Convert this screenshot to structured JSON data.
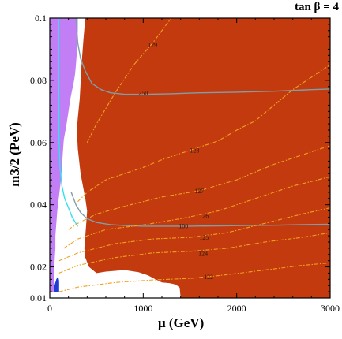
{
  "chart_data": {
    "type": "contour",
    "title": "tan β = 4",
    "xlabel": "μ  (GeV)",
    "ylabel": "m3/2 (PeV)",
    "xlim": [
      0,
      3000
    ],
    "ylim": [
      0.01,
      0.1
    ],
    "x_ticks": [
      "0",
      "1000",
      "2000",
      "3000"
    ],
    "y_ticks": [
      "0.01",
      "0.02",
      "0.04",
      "0.06",
      "0.08",
      "0.1"
    ],
    "x_tick_values": [
      0,
      1000,
      2000,
      3000
    ],
    "y_tick_values": [
      0.01,
      0.02,
      0.04,
      0.06,
      0.08,
      0.1
    ],
    "colors": {
      "excluded_region": "#c23a0e",
      "purple_region": "#c27ef5",
      "blue_region": "#1f3bd6",
      "higgs_contours": "#f0a020",
      "grey_contours": "#7f9fa8",
      "cyan_contour": "#33e0f0"
    },
    "regions": [
      {
        "name": "red",
        "color": "#c23a0e",
        "boundary": [
          [
            380,
            0.1
          ],
          [
            360,
            0.093
          ],
          [
            340,
            0.085
          ],
          [
            330,
            0.079
          ],
          [
            320,
            0.074
          ],
          [
            300,
            0.068
          ],
          [
            290,
            0.064
          ],
          [
            300,
            0.058
          ],
          [
            330,
            0.05
          ],
          [
            380,
            0.042
          ],
          [
            400,
            0.038
          ],
          [
            390,
            0.034
          ],
          [
            380,
            0.03
          ],
          [
            370,
            0.026
          ],
          [
            380,
            0.023
          ],
          [
            420,
            0.02
          ],
          [
            500,
            0.018
          ],
          [
            600,
            0.0185
          ],
          [
            800,
            0.019
          ],
          [
            950,
            0.0183
          ],
          [
            1050,
            0.0173
          ],
          [
            1130,
            0.016
          ],
          [
            1200,
            0.015
          ],
          [
            1280,
            0.0148
          ],
          [
            1350,
            0.0143
          ],
          [
            1390,
            0.0133
          ],
          [
            1400,
            0.01
          ],
          [
            3000,
            0.01
          ],
          [
            3000,
            0.1
          ]
        ]
      },
      {
        "name": "purple",
        "color": "#c27ef5",
        "boundary": [
          [
            0,
            0.1
          ],
          [
            300,
            0.1
          ],
          [
            300,
            0.096
          ],
          [
            290,
            0.093
          ],
          [
            290,
            0.089
          ],
          [
            280,
            0.085
          ],
          [
            270,
            0.082
          ],
          [
            260,
            0.08
          ],
          [
            240,
            0.077
          ],
          [
            220,
            0.074
          ],
          [
            200,
            0.07
          ],
          [
            180,
            0.066
          ],
          [
            150,
            0.061
          ],
          [
            140,
            0.057
          ],
          [
            130,
            0.052
          ],
          [
            120,
            0.048
          ],
          [
            100,
            0.043
          ],
          [
            80,
            0.038
          ],
          [
            70,
            0.034
          ],
          [
            60,
            0.03
          ],
          [
            60,
            0.026
          ],
          [
            50,
            0.021
          ],
          [
            50,
            0.016
          ],
          [
            40,
            0.012
          ],
          [
            0,
            0.012
          ]
        ]
      },
      {
        "name": "blue",
        "color": "#1f3bd6",
        "boundary": [
          [
            40,
            0.0118
          ],
          [
            100,
            0.0118
          ],
          [
            100,
            0.0155
          ],
          [
            90,
            0.017
          ],
          [
            70,
            0.016
          ],
          [
            50,
            0.014
          ]
        ]
      }
    ],
    "contours": [
      {
        "label": "250",
        "color": "#7f9fa8",
        "style": "solid",
        "label_at": [
          1000,
          0.076
        ],
        "points": [
          [
            280,
            0.1
          ],
          [
            300,
            0.092
          ],
          [
            330,
            0.087
          ],
          [
            380,
            0.083
          ],
          [
            450,
            0.079
          ],
          [
            550,
            0.077
          ],
          [
            650,
            0.076
          ],
          [
            800,
            0.0755
          ],
          [
            1000,
            0.0755
          ],
          [
            1300,
            0.0757
          ],
          [
            1600,
            0.076
          ],
          [
            2000,
            0.0762
          ],
          [
            2400,
            0.0765
          ],
          [
            2800,
            0.077
          ],
          [
            3000,
            0.0772
          ]
        ]
      },
      {
        "label": "100",
        "color": "#7f9fa8",
        "style": "solid",
        "label_at": [
          1430,
          0.0332
        ],
        "points": [
          [
            230,
            0.044
          ],
          [
            280,
            0.04
          ],
          [
            330,
            0.0375
          ],
          [
            400,
            0.0355
          ],
          [
            500,
            0.0343
          ],
          [
            650,
            0.0336
          ],
          [
            800,
            0.0333
          ],
          [
            1000,
            0.0331
          ],
          [
            1200,
            0.0331
          ],
          [
            1500,
            0.0331
          ],
          [
            1800,
            0.0332
          ],
          [
            2100,
            0.0333
          ],
          [
            2400,
            0.0334
          ],
          [
            2700,
            0.0336
          ],
          [
            3000,
            0.0337
          ]
        ]
      },
      {
        "label": "",
        "color": "#33e0f0",
        "style": "solid",
        "label_at": null,
        "points": [
          [
            95,
            0.1
          ],
          [
            95,
            0.08
          ],
          [
            100,
            0.06
          ],
          [
            110,
            0.052
          ],
          [
            130,
            0.046
          ],
          [
            160,
            0.042
          ],
          [
            200,
            0.039
          ],
          [
            240,
            0.036
          ],
          [
            280,
            0.034
          ],
          [
            300,
            0.033
          ]
        ]
      },
      {
        "label": "129",
        "color": "#f0a020",
        "style": "dashed",
        "label_at": [
          1100,
          0.0915
        ],
        "points": [
          [
            400,
            0.06
          ],
          [
            500,
            0.066
          ],
          [
            700,
            0.076
          ],
          [
            900,
            0.085
          ],
          [
            1100,
            0.092
          ],
          [
            1300,
            0.1
          ]
        ]
      },
      {
        "label": "128",
        "color": "#f0a020",
        "style": "dashed",
        "label_at": [
          1550,
          0.0575
        ],
        "points": [
          [
            300,
            0.041
          ],
          [
            400,
            0.044
          ],
          [
            600,
            0.048
          ],
          [
            800,
            0.05
          ],
          [
            1000,
            0.052
          ],
          [
            1200,
            0.0545
          ],
          [
            1400,
            0.0565
          ],
          [
            1600,
            0.0585
          ],
          [
            1800,
            0.0605
          ],
          [
            2000,
            0.064
          ],
          [
            2200,
            0.067
          ],
          [
            2400,
            0.072
          ],
          [
            2600,
            0.077
          ],
          [
            2800,
            0.081
          ],
          [
            3000,
            0.085
          ]
        ]
      },
      {
        "label": "127",
        "color": "#f0a020",
        "style": "dashed",
        "label_at": [
          1600,
          0.0445
        ],
        "points": [
          [
            200,
            0.032
          ],
          [
            300,
            0.034
          ],
          [
            500,
            0.037
          ],
          [
            800,
            0.0395
          ],
          [
            1200,
            0.0425
          ],
          [
            1600,
            0.0445
          ],
          [
            2000,
            0.048
          ],
          [
            2400,
            0.053
          ],
          [
            2800,
            0.057
          ],
          [
            3000,
            0.059
          ]
        ]
      },
      {
        "label": "126",
        "color": "#f0a020",
        "style": "dashed",
        "label_at": [
          1650,
          0.0365
        ],
        "points": [
          [
            150,
            0.026
          ],
          [
            300,
            0.029
          ],
          [
            600,
            0.032
          ],
          [
            1000,
            0.0335
          ],
          [
            1400,
            0.0355
          ],
          [
            1800,
            0.038
          ],
          [
            2200,
            0.042
          ],
          [
            2600,
            0.046
          ],
          [
            3000,
            0.049
          ]
        ]
      },
      {
        "label": "125",
        "color": "#f0a020",
        "style": "dashed",
        "label_at": [
          1650,
          0.0295
        ],
        "points": [
          [
            100,
            0.022
          ],
          [
            300,
            0.0245
          ],
          [
            700,
            0.0275
          ],
          [
            1100,
            0.029
          ],
          [
            1500,
            0.0295
          ],
          [
            1900,
            0.031
          ],
          [
            2300,
            0.034
          ],
          [
            2700,
            0.037
          ],
          [
            3000,
            0.039
          ]
        ]
      },
      {
        "label": "124",
        "color": "#f0a020",
        "style": "dashed",
        "label_at": [
          1640,
          0.0243
        ],
        "points": [
          [
            100,
            0.018
          ],
          [
            300,
            0.0205
          ],
          [
            700,
            0.023
          ],
          [
            1100,
            0.0245
          ],
          [
            1500,
            0.025
          ],
          [
            1900,
            0.026
          ],
          [
            2300,
            0.028
          ],
          [
            2700,
            0.0295
          ],
          [
            3000,
            0.031
          ]
        ]
      },
      {
        "label": "122",
        "color": "#f0a020",
        "style": "dashed",
        "label_at": [
          1700,
          0.0168
        ],
        "points": [
          [
            100,
            0.012
          ],
          [
            300,
            0.0135
          ],
          [
            700,
            0.015
          ],
          [
            1100,
            0.0158
          ],
          [
            1500,
            0.0163
          ],
          [
            1900,
            0.0175
          ],
          [
            2300,
            0.019
          ],
          [
            2700,
            0.0205
          ],
          [
            3000,
            0.0213
          ]
        ]
      }
    ]
  }
}
